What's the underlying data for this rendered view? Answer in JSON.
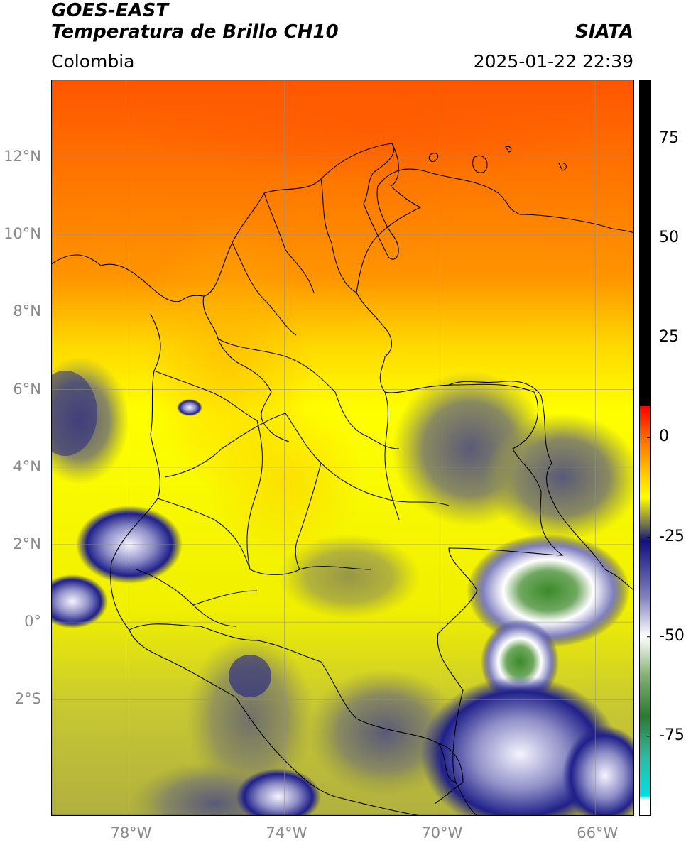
{
  "header": {
    "satellite": "GOES-EAST",
    "product": "Temperatura de Brillo CH10",
    "agency": "SIATA",
    "region": "Colombia",
    "datetime": "2025-01-22 22:39"
  },
  "map": {
    "lon_range": [
      -80,
      -65
    ],
    "lat_range": [
      -5,
      14
    ],
    "lat_ticks": [
      {
        "lat": 12,
        "label": "12°N"
      },
      {
        "lat": 10,
        "label": "10°N"
      },
      {
        "lat": 8,
        "label": "8°N"
      },
      {
        "lat": 6,
        "label": "6°N"
      },
      {
        "lat": 4,
        "label": "4°N"
      },
      {
        "lat": 2,
        "label": "2°N"
      },
      {
        "lat": 0,
        "label": "0°"
      },
      {
        "lat": -2,
        "label": "2°S"
      }
    ],
    "lon_ticks": [
      {
        "lon": -78,
        "label": "78°W"
      },
      {
        "lon": -74,
        "label": "74°W"
      },
      {
        "lon": -70,
        "label": "70°W"
      },
      {
        "lon": -66,
        "label": "66°W"
      }
    ],
    "gridlines": true,
    "colors": {
      "warm_north": "#ff5500",
      "mid": "#ff9500",
      "yellow": "#ffff00",
      "olive": "#c8c832",
      "cold_blue": "#1a1a80",
      "very_cold": "#ffffff",
      "green_core": "#3a8a2a"
    }
  },
  "colorbar": {
    "range": [
      -95,
      90
    ],
    "ticks": [
      {
        "value": 75,
        "label": "75"
      },
      {
        "value": 50,
        "label": "50"
      },
      {
        "value": 25,
        "label": "25"
      },
      {
        "value": 0,
        "label": "0"
      },
      {
        "value": -25,
        "label": "-25"
      },
      {
        "value": -50,
        "label": "-50"
      },
      {
        "value": -75,
        "label": "-75"
      }
    ],
    "stops": [
      {
        "value": 90,
        "color": "#000000"
      },
      {
        "value": 8,
        "color": "#000000"
      },
      {
        "value": 7.9,
        "color": "#ff0000"
      },
      {
        "value": 0,
        "color": "#ff6a00"
      },
      {
        "value": -10,
        "color": "#ffd200"
      },
      {
        "value": -15,
        "color": "#ffff00"
      },
      {
        "value": -22,
        "color": "#707050"
      },
      {
        "value": -26,
        "color": "#101080"
      },
      {
        "value": -40,
        "color": "#8080c0"
      },
      {
        "value": -50,
        "color": "#ffffff"
      },
      {
        "value": -60,
        "color": "#80b070"
      },
      {
        "value": -70,
        "color": "#2a7a30"
      },
      {
        "value": -80,
        "color": "#30b8a0"
      },
      {
        "value": -90,
        "color": "#00e0e0"
      },
      {
        "value": -91,
        "color": "#ffffff"
      },
      {
        "value": -95,
        "color": "#ffffff"
      }
    ]
  }
}
